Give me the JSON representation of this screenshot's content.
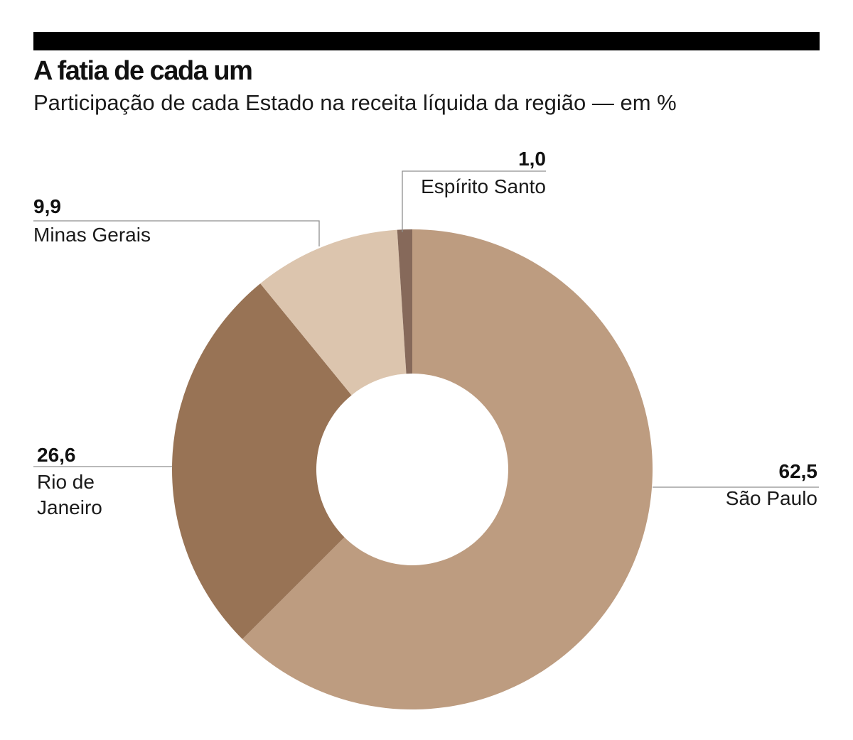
{
  "title": "A fatia de cada um",
  "subtitle": "Participação de cada Estado na receita líquida da região — em %",
  "chart_data": {
    "type": "pie",
    "variant": "donut",
    "title": "A fatia de cada um",
    "subtitle": "Participação de cada Estado na receita líquida da região — em %",
    "slices": [
      {
        "value_label": "62,5",
        "label_lines": [
          "São Paulo"
        ],
        "value": 62.5,
        "color": "#bd9c80"
      },
      {
        "value_label": "26,6",
        "label_lines": [
          "Rio de",
          "Janeiro"
        ],
        "value": 26.6,
        "color": "#987355"
      },
      {
        "value_label": "9,9",
        "label_lines": [
          "Minas Gerais"
        ],
        "value": 9.9,
        "color": "#dcc5ae"
      },
      {
        "value_label": "1,0",
        "label_lines": [
          "Espírito Santo"
        ],
        "value": 1.0,
        "color": "#86695a"
      }
    ]
  }
}
